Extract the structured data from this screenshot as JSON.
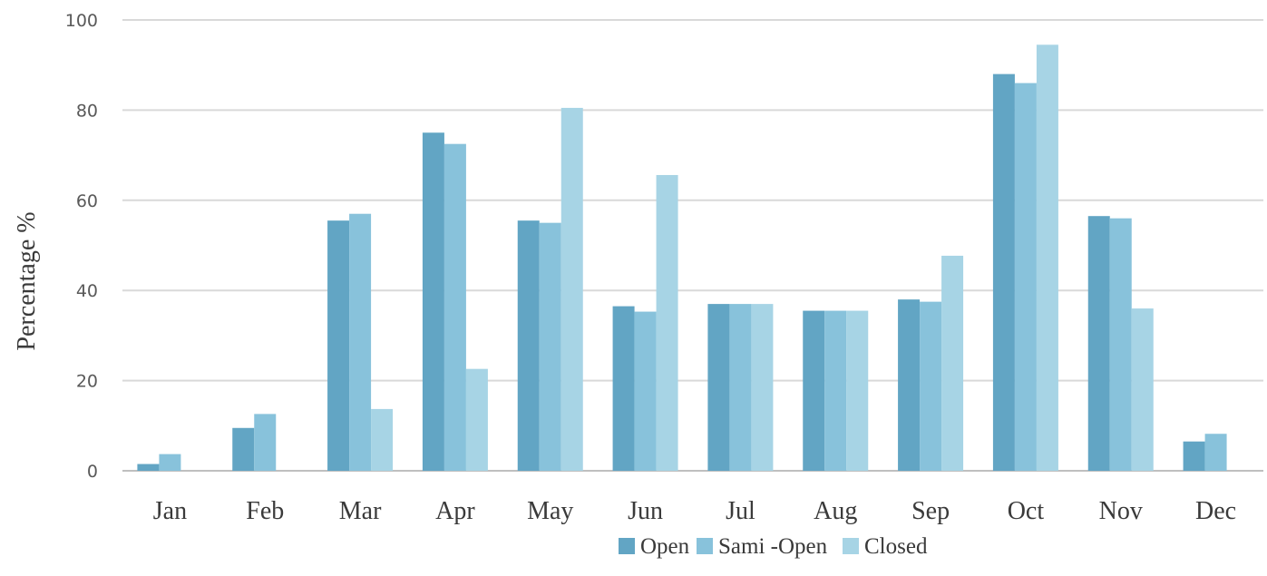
{
  "chart_data": {
    "type": "bar",
    "ylabel": "Percentage %",
    "xlabel": "",
    "ylim": [
      0,
      100
    ],
    "yticks": [
      0,
      20,
      40,
      60,
      80,
      100
    ],
    "grid": true,
    "legend_position": "bottom",
    "categories": [
      "Jan",
      "Feb",
      "Mar",
      "Apr",
      "May",
      "Jun",
      "Jul",
      "Aug",
      "Sep",
      "Oct",
      "Nov",
      "Dec"
    ],
    "series": [
      {
        "name": "Open",
        "color": "#62a5c4",
        "values": [
          1.5,
          9.5,
          55.5,
          75,
          55.5,
          36.5,
          37,
          35.5,
          38,
          88,
          56.5,
          6.5
        ]
      },
      {
        "name": "Sami -Open",
        "color": "#88c2db",
        "values": [
          3.7,
          12.6,
          57,
          72.5,
          55,
          35.3,
          37,
          35.5,
          37.5,
          86,
          56,
          8.2
        ]
      },
      {
        "name": "Closed",
        "color": "#a7d4e5",
        "values": [
          0,
          0,
          13.7,
          22.6,
          80.5,
          65.6,
          37,
          35.5,
          47.7,
          94.5,
          36,
          0
        ]
      }
    ]
  }
}
